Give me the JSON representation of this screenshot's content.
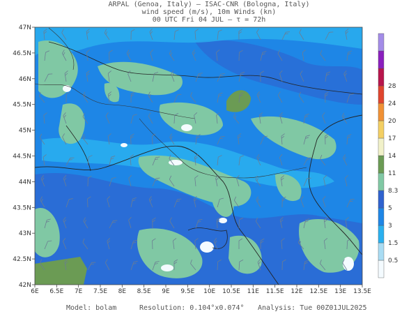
{
  "title": {
    "line1": "ARPAL (Genoa, Italy)  —  ISAC-CNR (Bologna, Italy)",
    "line2": "wind speed (m/s), 10m Winds (kn)",
    "line3": "00 UTC Fri 04 JUL  —  τ = 72h"
  },
  "axes": {
    "lat_ticks": [
      "47N",
      "46.5N",
      "46N",
      "45.5N",
      "45N",
      "44.5N",
      "44N",
      "43.5N",
      "43N",
      "42.5N",
      "42N"
    ],
    "lon_ticks": [
      "6E",
      "6.5E",
      "7E",
      "7.5E",
      "8E",
      "8.5E",
      "9E",
      "9.5E",
      "10E",
      "10.5E",
      "11E",
      "11.5E",
      "12E",
      "12.5E",
      "13E",
      "13.5E"
    ],
    "lat_range": [
      42,
      47
    ],
    "lon_range": [
      6,
      13.5
    ]
  },
  "colorbar": {
    "labels": [
      "0.5",
      "1.5",
      "3",
      "5",
      "8.3",
      "11",
      "14",
      "17",
      "20",
      "24",
      "28"
    ],
    "colors": [
      "#f4fbff",
      "#a9dcf3",
      "#2ab0ef",
      "#1e86e6",
      "#2f62cf",
      "#80c8a4",
      "#6b9b54",
      "#f1f1c9",
      "#f3cf63",
      "#f09135",
      "#e0452e",
      "#b8154c",
      "#8a1fbe",
      "#a38ce8"
    ]
  },
  "map_colors": {
    "base": "#1e86e6",
    "light": "#2ab0ef",
    "dark": "#2f62cf",
    "green": "#80c8a4",
    "olive": "#6b9b54"
  },
  "footer": {
    "model": "Model: bolam",
    "resolution": "Resolution: 0.104°x0.074°",
    "analysis": "Analysis: Tue 00Z01JUL2025"
  }
}
